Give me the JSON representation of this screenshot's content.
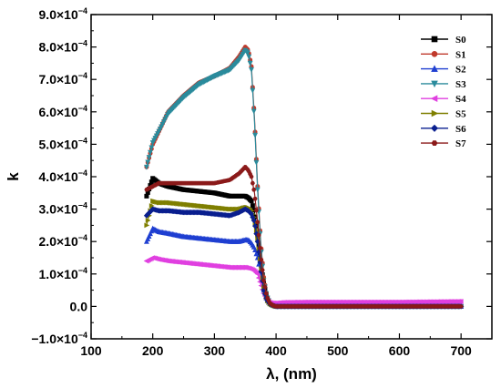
{
  "chart_data": {
    "type": "scatter",
    "xlabel": "λ, (nm)",
    "ylabel": "k",
    "xlim": [
      100,
      750
    ],
    "ylim": [
      -0.0001,
      0.0009
    ],
    "x_ticks": [
      100,
      200,
      300,
      400,
      500,
      600,
      700
    ],
    "x_tick_labels": [
      "100",
      "200",
      "300",
      "400",
      "500",
      "600",
      "700"
    ],
    "y_ticks": [
      -0.0001,
      0,
      0.0001,
      0.0002,
      0.0003,
      0.0004,
      0.0005,
      0.0006,
      0.0007,
      0.0008,
      0.0009
    ],
    "y_tick_labels": [
      {
        "mant": "−1.0×10",
        "exp": "−4"
      },
      {
        "mant": "0.0",
        "exp": ""
      },
      {
        "mant": "1.0×10",
        "exp": "−4"
      },
      {
        "mant": "2.0×10",
        "exp": "−4"
      },
      {
        "mant": "3.0×10",
        "exp": "−4"
      },
      {
        "mant": "4.0×10",
        "exp": "−4"
      },
      {
        "mant": "5.0×10",
        "exp": "−4"
      },
      {
        "mant": "6.0×10",
        "exp": "−4"
      },
      {
        "mant": "7.0×10",
        "exp": "−4"
      },
      {
        "mant": "8.0×10",
        "exp": "−4"
      },
      {
        "mant": "9.0×10",
        "exp": "−4"
      }
    ],
    "grid": false,
    "legend_position": "top-right",
    "series": [
      {
        "name": "S0",
        "color": "#000000",
        "marker": "square",
        "x": [
          190,
          200,
          210,
          225,
          250,
          275,
          300,
          325,
          340,
          350,
          355,
          360,
          365,
          370,
          375,
          380,
          385,
          390,
          395,
          400,
          410,
          450,
          500,
          600,
          700
        ],
        "y": [
          0.00034,
          0.000395,
          0.00038,
          0.00037,
          0.00036,
          0.000355,
          0.00035,
          0.00034,
          0.00034,
          0.00034,
          0.000335,
          0.000325,
          0.00029,
          0.00022,
          0.00014,
          7e-05,
          3e-05,
          1e-05,
          3e-06,
          0,
          0,
          0,
          0,
          0,
          0
        ]
      },
      {
        "name": "S1",
        "color": "#c0392b",
        "marker": "circle",
        "x": [
          190,
          200,
          210,
          225,
          250,
          275,
          300,
          325,
          340,
          350,
          355,
          360,
          365,
          370,
          375,
          380,
          385,
          390,
          395,
          400,
          410,
          450,
          500,
          600,
          700
        ],
        "y": [
          0.00043,
          0.0005,
          0.00054,
          0.0006,
          0.00065,
          0.00069,
          0.00071,
          0.000735,
          0.00077,
          0.0008,
          0.00079,
          0.00074,
          0.00058,
          0.00037,
          0.0002,
          9e-05,
          3e-05,
          1e-05,
          3e-06,
          0,
          0,
          0,
          0,
          0,
          0
        ]
      },
      {
        "name": "S2",
        "color": "#1f3fd1",
        "marker": "triangle-up",
        "x": [
          190,
          200,
          210,
          225,
          250,
          275,
          300,
          325,
          340,
          350,
          355,
          360,
          365,
          370,
          375,
          380,
          385,
          390,
          395,
          400,
          410,
          450,
          500,
          600,
          700
        ],
        "y": [
          0.0002,
          0.00024,
          0.00023,
          0.000225,
          0.000215,
          0.00021,
          0.000205,
          0.0002,
          0.0002,
          0.000205,
          0.000205,
          0.000195,
          0.00018,
          0.00015,
          0.0001,
          5e-05,
          2e-05,
          8e-06,
          3e-06,
          0,
          0,
          0,
          0,
          0,
          0
        ]
      },
      {
        "name": "S3",
        "color": "#2a8b9c",
        "marker": "triangle-down",
        "x": [
          190,
          200,
          210,
          225,
          250,
          275,
          300,
          325,
          340,
          350,
          355,
          360,
          365,
          370,
          375,
          380,
          385,
          390,
          395,
          400,
          410,
          450,
          500,
          600,
          700
        ],
        "y": [
          0.00043,
          0.000505,
          0.00054,
          0.000595,
          0.000645,
          0.000685,
          0.00071,
          0.00073,
          0.00076,
          0.00079,
          0.00078,
          0.00073,
          0.00057,
          0.00036,
          0.00019,
          8e-05,
          3e-05,
          1e-05,
          3e-06,
          0,
          0,
          0,
          0,
          0,
          0
        ]
      },
      {
        "name": "S4",
        "color": "#e040e0",
        "marker": "triangle-left",
        "x": [
          190,
          200,
          210,
          225,
          250,
          275,
          300,
          325,
          340,
          350,
          355,
          360,
          365,
          370,
          375,
          380,
          385,
          390,
          395,
          400,
          410,
          450,
          500,
          600,
          700
        ],
        "y": [
          0.00014,
          0.00015,
          0.000145,
          0.00014,
          0.000135,
          0.00013,
          0.000125,
          0.00012,
          0.00012,
          0.00012,
          0.000118,
          0.000115,
          0.00011,
          0.0001,
          7e-05,
          4e-05,
          2e-05,
          1.2e-05,
          1e-05,
          1e-05,
          1.2e-05,
          1.3e-05,
          1.3e-05,
          1.3e-05,
          1.5e-05
        ]
      },
      {
        "name": "S5",
        "color": "#7f7f00",
        "marker": "triangle-right",
        "x": [
          190,
          200,
          210,
          225,
          250,
          275,
          300,
          325,
          340,
          350,
          355,
          360,
          365,
          370,
          375,
          380,
          385,
          390,
          395,
          400,
          410,
          450,
          500,
          600,
          700
        ],
        "y": [
          0.00025,
          0.000325,
          0.00032,
          0.00032,
          0.000315,
          0.00031,
          0.000305,
          0.0003,
          0.0003,
          0.000305,
          0.000305,
          0.000295,
          0.00027,
          0.00021,
          0.00013,
          6e-05,
          2e-05,
          8e-06,
          3e-06,
          0,
          0,
          0,
          0,
          0,
          0
        ]
      },
      {
        "name": "S6",
        "color": "#0a1f8f",
        "marker": "diamond",
        "x": [
          190,
          200,
          210,
          225,
          250,
          275,
          300,
          325,
          340,
          350,
          355,
          360,
          365,
          370,
          375,
          380,
          385,
          390,
          395,
          400,
          410,
          450,
          500,
          600,
          700
        ],
        "y": [
          0.00028,
          0.0003,
          0.000295,
          0.000295,
          0.00029,
          0.00029,
          0.000285,
          0.00028,
          0.00029,
          0.0003,
          0.000295,
          0.000285,
          0.00026,
          0.0002,
          0.00012,
          5e-05,
          2e-05,
          8e-06,
          3e-06,
          0,
          0,
          0,
          0,
          0,
          0
        ]
      },
      {
        "name": "S7",
        "color": "#8b1a1a",
        "marker": "hexagon",
        "x": [
          190,
          200,
          210,
          225,
          250,
          275,
          300,
          325,
          340,
          350,
          355,
          360,
          365,
          370,
          375,
          380,
          385,
          390,
          395,
          400,
          410,
          450,
          500,
          600,
          700
        ],
        "y": [
          0.00036,
          0.00037,
          0.00038,
          0.00038,
          0.00038,
          0.00038,
          0.00038,
          0.00039,
          0.00041,
          0.00043,
          0.00042,
          0.0004,
          0.00035,
          0.00026,
          0.00016,
          8e-05,
          3e-05,
          1e-05,
          3e-06,
          0,
          0,
          0,
          0,
          0,
          0
        ]
      }
    ]
  }
}
